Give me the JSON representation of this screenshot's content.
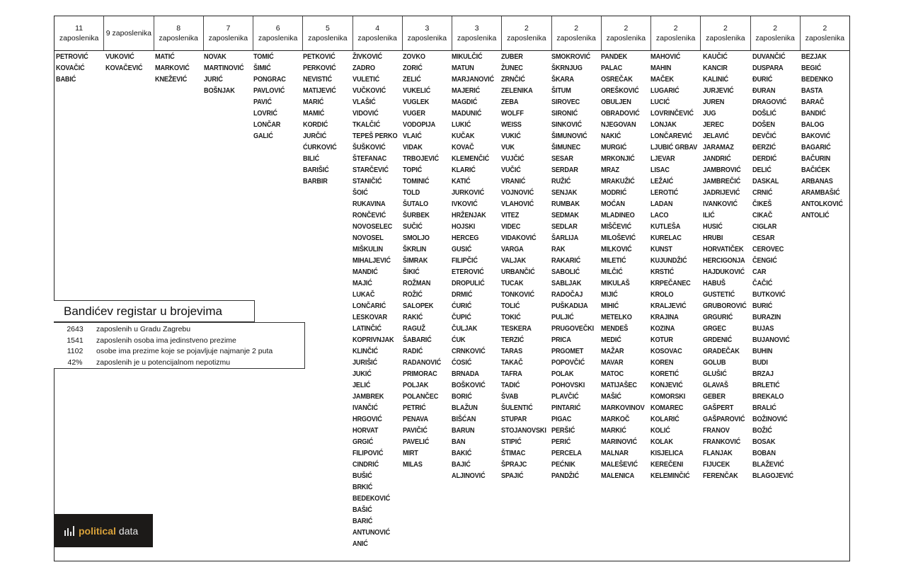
{
  "columns": [
    {
      "count": "11",
      "label": "zaposlenika",
      "names": [
        "PETROVIĆ",
        "KOVAČIĆ",
        "BABIĆ"
      ]
    },
    {
      "count": "9",
      "label": "zaposlenika",
      "inline": true,
      "names": [
        "VUKOVIĆ",
        "KOVAČEVIĆ"
      ]
    },
    {
      "count": "8",
      "label": "zaposlenika",
      "names": [
        "MATIĆ",
        "MARKOVIĆ",
        "KNEŽEVIĆ"
      ]
    },
    {
      "count": "7",
      "label": "zaposlenika",
      "names": [
        "NOVAK",
        "MARTINOVIĆ",
        "JURIĆ",
        "BOŠNJAK"
      ]
    },
    {
      "count": "6",
      "label": "zaposlenika",
      "names": [
        "TOMIĆ",
        "ŠIMIĆ",
        "PONGRAC",
        "PAVLOVIĆ",
        "PAVIĆ",
        "LOVRIĆ",
        "LONČAR",
        "GALIĆ"
      ]
    },
    {
      "count": "5",
      "label": "zaposlenika",
      "names": [
        "PETKOVIĆ",
        "PERKOVIĆ",
        "NEVISTIĆ",
        "MATIJEVIĆ",
        "MARIĆ",
        "MAMIĆ",
        "KORDIĆ",
        "JURČIĆ",
        "ĆURKOVIĆ",
        "BILIĆ",
        "BARIŠIĆ",
        "BARBIR"
      ]
    },
    {
      "count": "4",
      "label": "zaposlenika",
      "names": [
        "ŽIVKOVIĆ",
        "ZADRO",
        "VULETIĆ",
        "VUČKOVIĆ",
        "VLAŠIĆ",
        "VIDOVIĆ",
        "TKALČIĆ",
        "TEPEŠ PERKO",
        "ŠUŠKOVIĆ",
        "ŠTEFANAC",
        "STARČEVIĆ",
        "STANIČIĆ",
        "ŠOIĆ",
        "RUKAVINA",
        "RONČEVIĆ",
        "NOVOSELEC",
        "NOVOSEL",
        "MIŠKULIN",
        "MIHALJEVIĆ",
        "MANDIĆ",
        "MAJIĆ",
        "LUKAČ",
        "LONČARIĆ",
        "LESKOVAR",
        "LATINČIĆ",
        "KOPRIVNJAK",
        "KLINČIĆ",
        "JURIŠIĆ",
        "JUKIĆ",
        "JELIĆ",
        "JAMBREK",
        "IVANČIĆ",
        "HRGOVIĆ",
        "HORVAT",
        "GRGIĆ",
        "FILIPOVIĆ",
        "CINDRIĆ",
        "BUŠIĆ",
        "BRKIĆ",
        "BEDEKOVIĆ",
        "BAŠIĆ",
        "BARIĆ",
        "ANTUNOVIĆ",
        "ANIĆ"
      ]
    },
    {
      "count": "3",
      "label": "zaposlenika",
      "names": [
        "ZOVKO",
        "ZORIĆ",
        "ZELIĆ",
        "VUKELIĆ",
        "VUGLEK",
        "VUGER",
        "VODOPIJA",
        "VLAIĆ",
        "VIDAK",
        "TRBOJEVIĆ",
        "TOPIĆ",
        "TOMINIĆ",
        "TOLD",
        "ŠUTALO",
        "ŠURBEK",
        "SUČIĆ",
        "SMOLJO",
        "ŠKRLIN",
        "ŠIMRAK",
        "ŠIKIĆ",
        "ROŽMAN",
        "ROŽIĆ",
        "SALOPEK",
        "RAKIĆ",
        "RAGUŽ",
        "ŠABARIĆ",
        "RADIĆ",
        "RADANOVIĆ",
        "PRIMORAC",
        "POLJAK",
        "POLANČEC",
        "PETRIĆ",
        "PENAVA",
        "PAVIČIĆ",
        "PAVELIĆ",
        "MIRT",
        "MILAS"
      ]
    },
    {
      "count": "3",
      "label": "zaposlenika",
      "names": [
        "MIKULČIĆ",
        "MATUN",
        "MARJANOVIĆ",
        "MAJERIĆ",
        "MAGDIĆ",
        "MADUNIĆ",
        "LUKIĆ",
        "KUČAK",
        "KOVAČ",
        "KLEMENČIĆ",
        "KLARIĆ",
        "KATIĆ",
        "JURKOVIĆ",
        "IVKOVIĆ",
        "HRŽENJAK",
        "HOJSKI",
        "HERCEG",
        "GUSIĆ",
        "FILIPČIĆ",
        "ETEROVIĆ",
        "DROPULIĆ",
        "DRMIĆ",
        "ĆURIĆ",
        "ČUPIĆ",
        "ČULJAK",
        "ĆUK",
        "CRNKOVIĆ",
        "ĆOSIĆ",
        "BRNADA",
        "BOŠKOVIĆ",
        "BORIĆ",
        "BLAŽUN",
        "BIŠĆAN",
        "BARUN",
        "BAN",
        "BAKIĆ",
        "BAJIĆ",
        "ALJINOVIĆ"
      ]
    },
    {
      "count": "2",
      "label": "zaposlenika",
      "names": [
        "ZUBER",
        "ŽUNEC",
        "ZRNČIĆ",
        "ZELENIKA",
        "ZEBA",
        "WOLFF",
        "WEISS",
        "VUKIĆ",
        "VUK",
        "VUJČIĆ",
        "VUČIĆ",
        "VRANIĆ",
        "VOJNOVIĆ",
        "VLAHOVIĆ",
        "VITEZ",
        "VIDEC",
        "VIDAKOVIĆ",
        "VARGA",
        "VALJAK",
        "URBANČIĆ",
        "TUCAK",
        "TONKOVIĆ",
        "TOLIĆ",
        "TOKIĆ",
        "TESKERA",
        "TERZIĆ",
        "TARAS",
        "TAKAČ",
        "TAFRA",
        "TADIĆ",
        "ŠVAB",
        "ŠULENTIĆ",
        "STUPAR",
        "STOJANOVSKI",
        "STIPIĆ",
        "ŠTIMAC",
        "ŠPRAJC",
        "SPAJIĆ"
      ]
    },
    {
      "count": "2",
      "label": "zaposlenika",
      "names": [
        "SMOKROVIĆ",
        "ŠKRNJUG",
        "ŠKARA",
        "ŠITUM",
        "SIROVEC",
        "SIRONIĆ",
        "SINKOVIĆ",
        "ŠIMUNOVIĆ",
        "ŠIMUNEC",
        "SESAR",
        "SERDAR",
        "RUŽIĆ",
        "SENJAK",
        "RUMBAK",
        "SEDMAK",
        "SEDLAR",
        "ŠARLIJA",
        "RAK",
        "RAKARIĆ",
        "SABOLIĆ",
        "SABLJAK",
        "RADOČAJ",
        "PUŠKADIJA",
        "PULJIĆ",
        "PRUGOVEČKI",
        "PRICA",
        "PRGOMET",
        "POPOVČIĆ",
        "POLAK",
        "POHOVSKI",
        "PLAVČIĆ",
        "PINTARIĆ",
        "PIGAC",
        "PERŠIĆ",
        "PERIĆ",
        "PERCELA",
        "PEĆNIK",
        "PANDŽIĆ"
      ]
    },
    {
      "count": "2",
      "label": "zaposlenika",
      "names": [
        "PANDEK",
        "PALAC",
        "OSREČAK",
        "OREŠKOVIĆ",
        "OBULJEN",
        "OBRADOVIĆ",
        "NJEGOVAN",
        "NAKIĆ",
        "MURGIĆ",
        "MRKONJIĆ",
        "MRAZ",
        "MRAKUŽIĆ",
        "MODRIĆ",
        "MOĆAN",
        "MLADINEO",
        "MIŠČEVIĆ",
        "MILOŠEVIĆ",
        "MILKOVIĆ",
        "MILETIĆ",
        "MILČIĆ",
        "MIKULAŠ",
        "MIJIĆ",
        "MIHIĆ",
        "METELKO",
        "MENDEŠ",
        "MEDIĆ",
        "MAŽAR",
        "MAVAR",
        "MATOC",
        "MATIJAŠEC",
        "MAŠIĆ",
        "MARKOVINOV",
        "MARKOČ",
        "MARKIĆ",
        "MARINOVIĆ",
        "MALNAR",
        "MALEŠEVIĆ",
        "MALENICA"
      ]
    },
    {
      "count": "2",
      "label": "zaposlenika",
      "names": [
        "MAHOVIĆ",
        "MAHIN",
        "MAČEK",
        "LUGARIĆ",
        "LUCIĆ",
        "LOVRINČEVIĆ",
        "LONJAK",
        "LONČAREVIĆ",
        "LJUBIĆ GRBAV",
        "LJEVAR",
        "LISAC",
        "LEŽAIĆ",
        "LEROTIĆ",
        "LADAN",
        "LACO",
        "KUTLEŠA",
        "KURELAC",
        "KUNST",
        "KUJUNDŽIĆ",
        "KRSTIĆ",
        "KRPEČANEC",
        "KROLO",
        "KRALJEVIĆ",
        "KRAJINA",
        "KOZINA",
        "KOTUR",
        "KOSOVAC",
        "KOREN",
        "KORETIĆ",
        "KONJEVIĆ",
        "KOMORSKI",
        "KOMAREC",
        "KOLARIĆ",
        "KOLIĆ",
        "KOLAK",
        "KISJELICA",
        "KEREČENI",
        "KELEMINČIĆ"
      ]
    },
    {
      "count": "2",
      "label": "zaposlenika",
      "names": [
        "KAUČIĆ",
        "KANCIR",
        "KALINIĆ",
        "JURJEVIĆ",
        "JUREN",
        "JUG",
        "JEREC",
        "JELAVIĆ",
        "JARAMAZ",
        "JANDRIĆ",
        "JAMBROVIĆ",
        "JAMBREČIĆ",
        "JADRIJEVIĆ",
        "IVANKOVIĆ",
        "ILIĆ",
        "HUSIĆ",
        "HRUBI",
        "HORVATIČEK",
        "HERCIGONJA",
        "HAJDUKOVIĆ",
        "HABUŠ",
        "GUSTETIĆ",
        "GRUBOROVIĆ",
        "GRGURIĆ",
        "GRGEC",
        "GRDENIĆ",
        "GRADEČAK",
        "GOLUB",
        "GLUŠIĆ",
        "GLAVAŠ",
        "GEBER",
        "GAŠPERT",
        "GAŠPAROVIĆ",
        "FRANOV",
        "FRANKOVIĆ",
        "FLANJAK",
        "FIJUCEK",
        "FERENČAK"
      ]
    },
    {
      "count": "2",
      "label": "zaposlenika",
      "names": [
        "DUVANČIĆ",
        "DUSPARA",
        "ĐURIĆ",
        "ĐURAN",
        "DRAGOVIĆ",
        "DOŠLIĆ",
        "DOŠEN",
        "DEVČIĆ",
        "ĐERZIĆ",
        "DERDIĆ",
        "DELIĆ",
        "DASKAL",
        "CRNIĆ",
        "ČIKEŠ",
        "CIKAČ",
        "CIGLAR",
        "CESAR",
        "CEROVEC",
        "ČENGIĆ",
        "CAR",
        "ČAČIĆ",
        "BUTKOVIĆ",
        "BURIĆ",
        "BURAZIN",
        "BUJAS",
        "BUJANOVIĆ",
        "BUHIN",
        "BUDI",
        "BRZAJ",
        "BRLETIĆ",
        "BREKALO",
        "BRALIĆ",
        "BOŽINOVIĆ",
        "BOŽIĆ",
        "BOSAK",
        "BOBAN",
        "BLAŽEVIĆ",
        "BLAGOJEVIĆ"
      ]
    },
    {
      "count": "2",
      "label": "zaposlenika",
      "names": [
        "BEZJAK",
        "BEGIĆ",
        "BEDENKO",
        "BASTA",
        "BARAČ",
        "BANDIĆ",
        "BALOG",
        "BAKOVIĆ",
        "BAGARIĆ",
        "BAČURIN",
        "BAČIĆEK",
        "ARBANAS",
        "ARAMBAŠIĆ",
        "ANTOLKOVIĆ",
        "ANTOLIĆ"
      ]
    }
  ],
  "stats": {
    "title": "Bandićev registar u brojevima",
    "rows": [
      {
        "value": "2643",
        "text": "zaposlenih u Gradu Zagrebu"
      },
      {
        "value": "1541",
        "text": "zaposlenih osoba ima jedinstveno prezime"
      },
      {
        "value": "1102",
        "text": "osobe ima prezime koje se pojavljuje najmanje 2 puta"
      },
      {
        "value": "42%",
        "text": "zaposlenih je u potencijalnom nepotizmu"
      }
    ]
  },
  "logo": {
    "word1": "political",
    "word2": "data",
    "color_accent": "#d9a23a"
  }
}
